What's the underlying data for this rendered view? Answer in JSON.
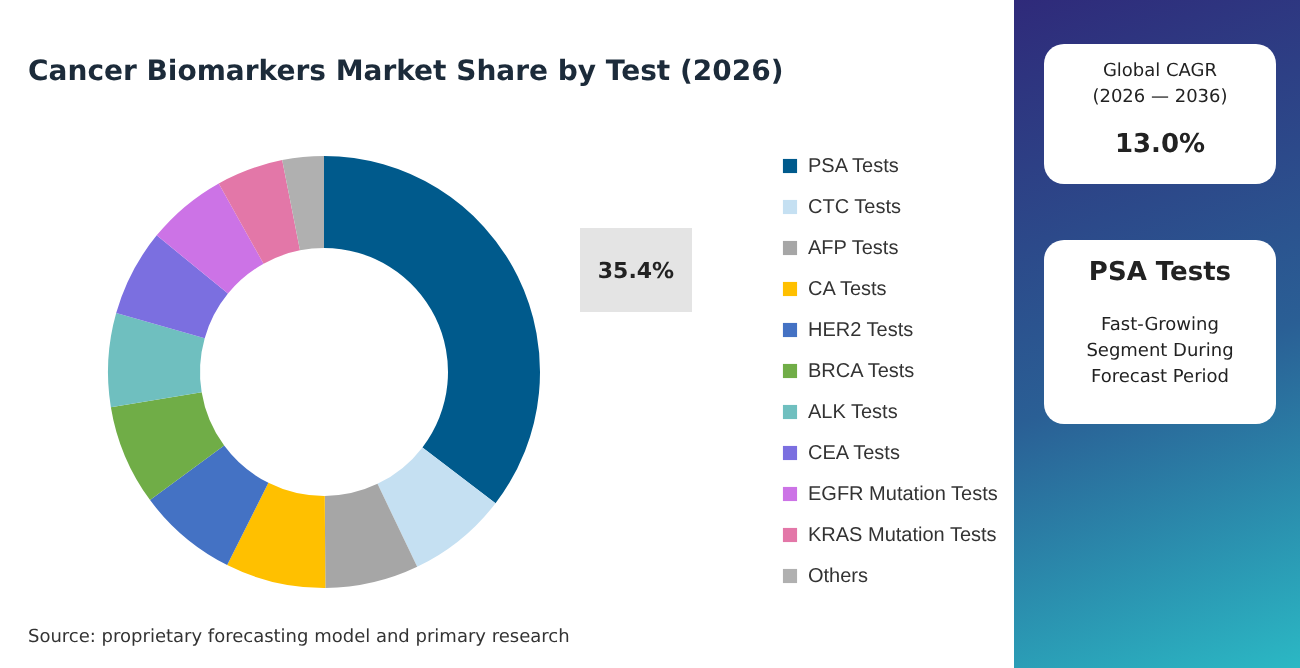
{
  "chart_data": {
    "type": "donut",
    "title": "Cancer Biomarkers Market Share by Test (2026)",
    "categories": [
      "PSA Tests",
      "CTC Tests",
      "AFP Tests",
      "CA Tests",
      "HER2 Tests",
      "BRCA Tests",
      "ALK Tests",
      "CEA Tests",
      "EGFR Mutation Tests",
      "KRAS Mutation Tests",
      "Others"
    ],
    "values": [
      35.4,
      7.5,
      7,
      7.5,
      7.5,
      7.5,
      7,
      6.5,
      6,
      5,
      3.1
    ],
    "colors": [
      "#005a8c",
      "#c5e0f2",
      "#a6a6a6",
      "#ffc000",
      "#4472c4",
      "#70ad47",
      "#6fbfbf",
      "#7b6fe0",
      "#cc73e6",
      "#e377a8",
      "#b0b0b0"
    ],
    "value_labels": [
      "35.4%",
      null,
      null,
      null,
      null,
      null,
      null,
      null,
      null,
      null,
      null
    ],
    "legend": "right",
    "annotations": [
      "Source: proprietary forecasting model and primary research",
      "Global CAGR",
      "(2026 — 2036)",
      "13.0%",
      "PSA Tests",
      "Fast-Growing Segment During Forecast Period"
    ]
  }
}
